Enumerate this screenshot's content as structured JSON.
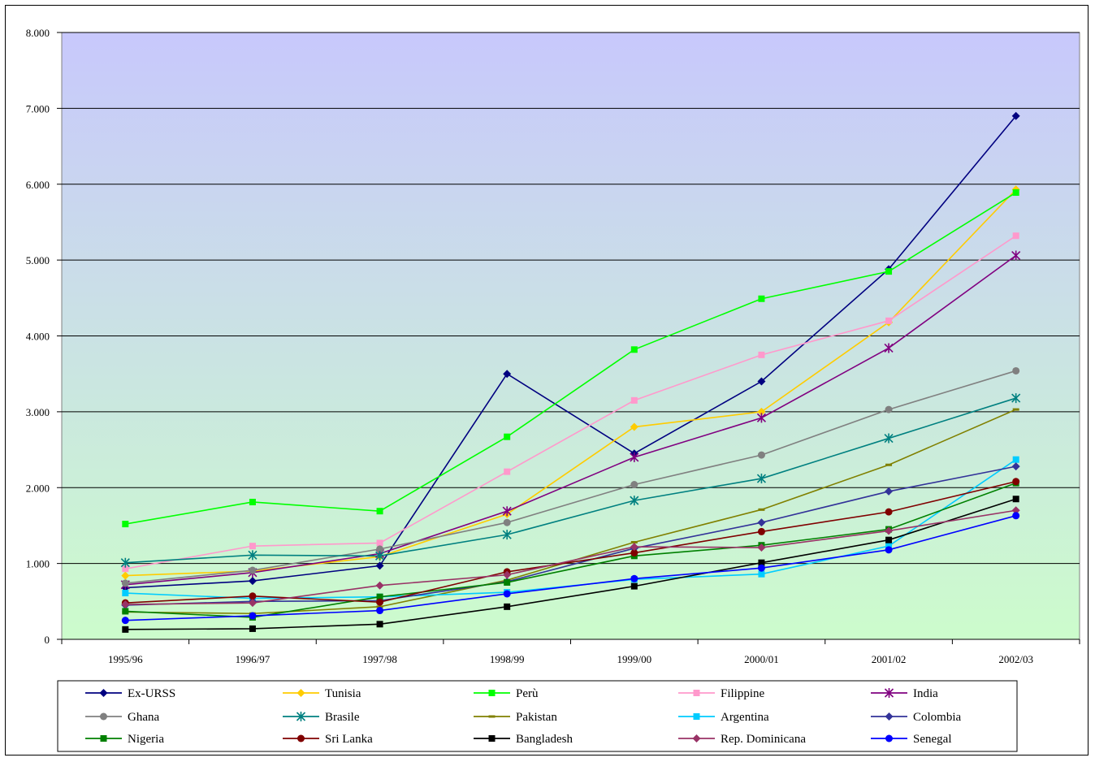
{
  "chart_data": {
    "type": "line",
    "title": "",
    "xlabel": "",
    "ylabel": "",
    "categories": [
      "1995/96",
      "1996/97",
      "1997/98",
      "1998/99",
      "1999/00",
      "2000/01",
      "2001/02",
      "2002/03"
    ],
    "ylim": [
      0,
      8000
    ],
    "yticks": [
      0,
      1000,
      2000,
      3000,
      4000,
      5000,
      6000,
      7000,
      8000
    ],
    "ytick_labels": [
      "0",
      "1.000",
      "2.000",
      "3.000",
      "4.000",
      "5.000",
      "6.000",
      "7.000",
      "8.000"
    ],
    "grid": true,
    "background": "vertical gradient from #c8c8fc (top) to #ccfccc (bottom)",
    "legend_position": "bottom",
    "series": [
      {
        "name": "Ex-URSS",
        "color": "#000080",
        "marker": "diamond",
        "values": [
          680,
          770,
          970,
          3500,
          2450,
          3400,
          4880,
          6900
        ]
      },
      {
        "name": "Tunisia",
        "color": "#ffcc00",
        "marker": "diamond",
        "values": [
          840,
          900,
          1090,
          1650,
          2800,
          3000,
          4180,
          5930
        ]
      },
      {
        "name": "Perù",
        "color": "#00ff00",
        "marker": "square",
        "values": [
          1520,
          1810,
          1690,
          2670,
          3820,
          4490,
          4850,
          5890
        ]
      },
      {
        "name": "Filippine",
        "color": "#ff99cc",
        "marker": "square",
        "values": [
          930,
          1230,
          1270,
          2210,
          3150,
          3750,
          4200,
          5320
        ]
      },
      {
        "name": "India",
        "color": "#800080",
        "marker": "asterisk",
        "values": [
          720,
          880,
          1130,
          1690,
          2400,
          2920,
          3840,
          5060
        ]
      },
      {
        "name": "Ghana",
        "color": "#808080",
        "marker": "circle",
        "values": [
          740,
          910,
          1190,
          1540,
          2040,
          2430,
          3030,
          3540
        ]
      },
      {
        "name": "Brasile",
        "color": "#008080",
        "marker": "asterisk",
        "values": [
          1010,
          1110,
          1100,
          1380,
          1830,
          2120,
          2650,
          3180
        ]
      },
      {
        "name": "Pakistan",
        "color": "#808000",
        "marker": "dash",
        "values": [
          360,
          340,
          430,
          780,
          1280,
          1710,
          2300,
          3030
        ]
      },
      {
        "name": "Argentina",
        "color": "#00ccff",
        "marker": "square",
        "values": [
          610,
          540,
          560,
          620,
          790,
          860,
          1230,
          2370
        ]
      },
      {
        "name": "Colombia",
        "color": "#333399",
        "marker": "diamond",
        "values": [
          450,
          500,
          510,
          760,
          1200,
          1540,
          1950,
          2280
        ]
      },
      {
        "name": "Nigeria",
        "color": "#008000",
        "marker": "square",
        "values": [
          370,
          290,
          560,
          750,
          1100,
          1240,
          1450,
          2060
        ]
      },
      {
        "name": "Sri Lanka",
        "color": "#800000",
        "marker": "circle",
        "values": [
          480,
          570,
          490,
          890,
          1140,
          1420,
          1680,
          2080
        ]
      },
      {
        "name": "Bangladesh",
        "color": "#000000",
        "marker": "square",
        "values": [
          130,
          140,
          200,
          430,
          700,
          1010,
          1310,
          1850
        ]
      },
      {
        "name": "Rep. Dominicana",
        "color": "#993366",
        "marker": "diamond",
        "values": [
          460,
          480,
          710,
          850,
          1220,
          1210,
          1430,
          1700
        ]
      },
      {
        "name": "Senegal",
        "color": "#0000ff",
        "marker": "circle",
        "values": [
          250,
          310,
          380,
          600,
          800,
          940,
          1180,
          1630
        ]
      }
    ]
  }
}
